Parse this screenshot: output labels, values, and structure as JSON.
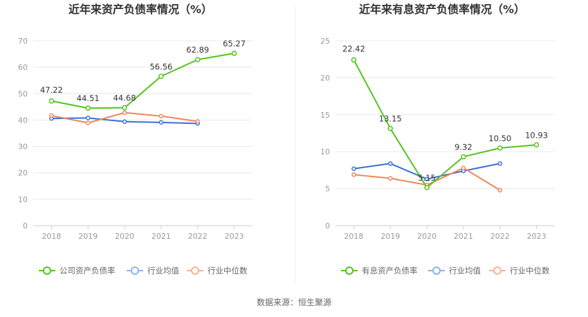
{
  "source_text": "数据来源：恒生聚源",
  "chart_data": [
    {
      "type": "line",
      "title": "近年来资产负债率情况（%）",
      "categories": [
        "2018",
        "2019",
        "2020",
        "2021",
        "2022",
        "2023"
      ],
      "ylim": [
        0,
        70
      ],
      "yticks": [
        0,
        10,
        20,
        30,
        40,
        50,
        60,
        70
      ],
      "grid": true,
      "legend_position": "bottom",
      "series": [
        {
          "name": "公司资产负债率",
          "color": "#52c41a",
          "labeled": true,
          "values": [
            47.22,
            44.51,
            44.68,
            56.56,
            62.89,
            65.27
          ],
          "labels": [
            "47.22",
            "44.51",
            "44.68",
            "56.56",
            "62.89",
            "65.27"
          ]
        },
        {
          "name": "行业均值",
          "color": "#3a6fd8",
          "labeled": false,
          "values": [
            40.6,
            40.8,
            39.4,
            39.1,
            38.7,
            null
          ]
        },
        {
          "name": "行业中位数",
          "color": "#f0875a",
          "labeled": false,
          "values": [
            41.7,
            38.9,
            42.8,
            41.5,
            39.5,
            null
          ]
        }
      ]
    },
    {
      "type": "line",
      "title": "近年来有息资产负债率情况（%）",
      "categories": [
        "2018",
        "2019",
        "2020",
        "2021",
        "2022",
        "2023"
      ],
      "ylim": [
        0,
        25
      ],
      "yticks": [
        0,
        5,
        10,
        15,
        20,
        25
      ],
      "grid": true,
      "legend_position": "bottom",
      "series": [
        {
          "name": "有息资产负债率",
          "color": "#52c41a",
          "labeled": true,
          "values": [
            22.42,
            13.15,
            5.15,
            9.32,
            10.5,
            10.93
          ],
          "labels": [
            "22.42",
            "13.15",
            "5.15",
            "9.32",
            "10.50",
            "10.93"
          ]
        },
        {
          "name": "行业均值",
          "color": "#3a6fd8",
          "labeled": false,
          "values": [
            7.7,
            8.4,
            6.3,
            7.4,
            8.4,
            null
          ]
        },
        {
          "name": "行业中位数",
          "color": "#f0875a",
          "labeled": false,
          "values": [
            6.9,
            6.4,
            5.5,
            7.8,
            4.8,
            null
          ]
        }
      ]
    }
  ]
}
